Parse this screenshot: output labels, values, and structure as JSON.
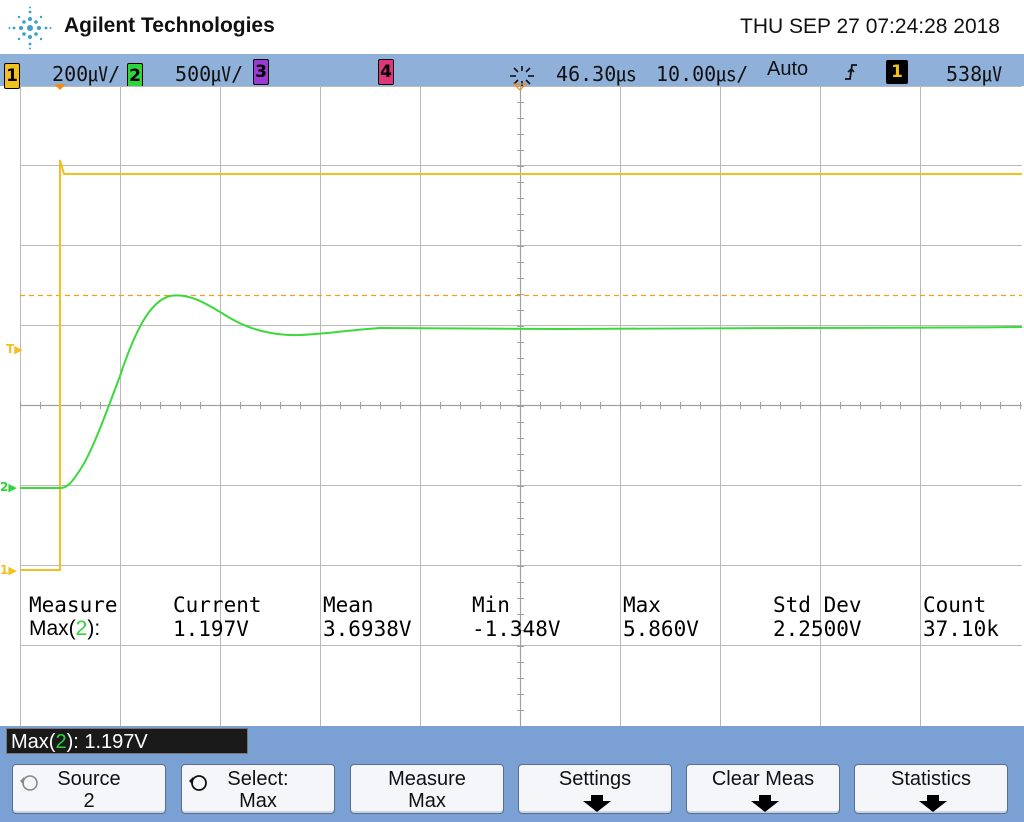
{
  "header": {
    "brand": "Agilent Technologies",
    "datetime": "THU SEP 27 07:24:28 2018",
    "logo_icon": "agilent-spark-icon"
  },
  "channel_bar": {
    "ch1": {
      "num": "1",
      "scale": "200㎶/"
    },
    "ch2": {
      "num": "2",
      "scale": "500㎶/"
    },
    "ch3": {
      "num": "3"
    },
    "ch4": {
      "num": "4"
    },
    "delay": "46.30㎲",
    "timebase": "10.00㎲/",
    "trigger_mode": "Auto",
    "trigger_slope": "⨍",
    "trigger_source": "1",
    "trigger_level": "538㎶",
    "colors": {
      "ch1": "#f2c11f",
      "ch2": "#2ed43a",
      "ch3": "#9b3ad0",
      "ch4": "#e0357b",
      "bar": "#8fb0d9"
    }
  },
  "screen": {
    "markers": {
      "trigger": "T",
      "ch2": "2",
      "ch1": "1"
    }
  },
  "measurement": {
    "headers": {
      "label": "Measure",
      "current": "Current",
      "mean": "Mean",
      "min": "Min",
      "max": "Max",
      "std_dev": "Std Dev",
      "count": "Count"
    },
    "row": {
      "name_prefix": "Max(",
      "channel": "2",
      "name_suffix": "):",
      "current": "1.197V",
      "mean": "3.6938V",
      "min": "-1.348V",
      "max": "5.860V",
      "std_dev": "2.2500V",
      "count": "37.10k"
    }
  },
  "status": {
    "prefix": "Max(",
    "channel": "2",
    "suffix": "): 1.197V"
  },
  "softkeys": [
    {
      "line1": "Source",
      "line2": "2"
    },
    {
      "line1": "Select:",
      "line2": "Max"
    },
    {
      "line1": "Measure",
      "line2": "Max"
    },
    {
      "line1": "Settings",
      "line2": ""
    },
    {
      "line1": "Clear Meas",
      "line2": ""
    },
    {
      "line1": "Statistics",
      "line2": ""
    }
  ]
}
